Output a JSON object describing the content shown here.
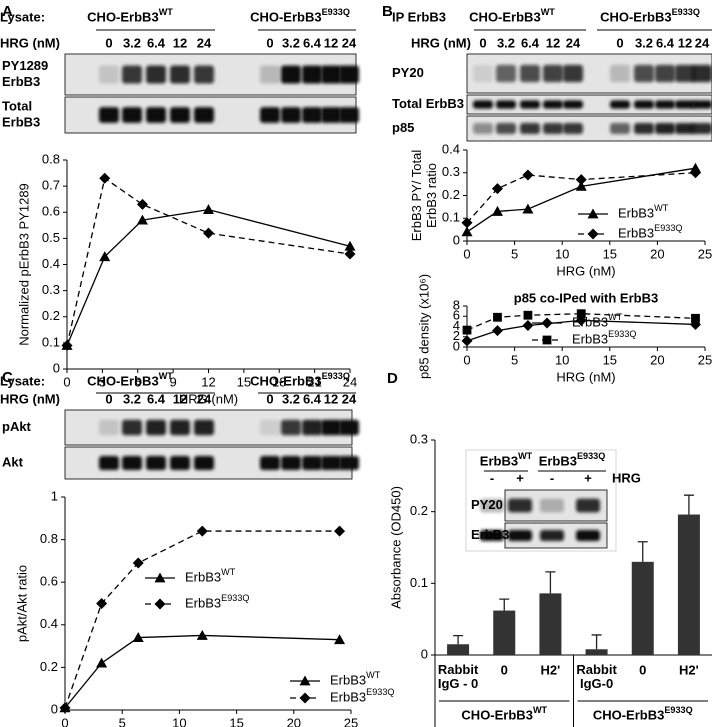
{
  "chart_data": [
    {
      "type": "line",
      "xlabel": "HRG (nM)",
      "ylabel": "Normalized pErbB3 PY1289",
      "x": [
        0,
        3.2,
        6.4,
        12,
        24
      ],
      "xlim": [
        0,
        24
      ],
      "xticks": [
        0,
        3,
        6,
        9,
        12,
        15,
        18,
        21,
        24
      ],
      "ylim": [
        0,
        0.8
      ],
      "yticks": [
        0,
        0.1,
        0.2,
        0.3,
        0.4,
        0.5,
        0.6,
        0.7,
        0.8
      ],
      "legend": "lower center",
      "series": [
        {
          "name": "ErbB3WT",
          "color": "#000000",
          "marker": "triangle",
          "line_style": "solid",
          "values": [
            0.09,
            0.43,
            0.57,
            0.61,
            0.47
          ]
        },
        {
          "name": "ErbB3E933Q",
          "color": "#000000",
          "marker": "diamond",
          "line_style": "dashed",
          "values": [
            0.09,
            0.73,
            0.63,
            0.52,
            0.44
          ]
        }
      ]
    },
    {
      "type": "line",
      "xlabel": "HRG (nM)",
      "ylabel": [
        "ErbB3 PY/ Total",
        "ErbB3 ratio"
      ],
      "x": [
        0,
        3.2,
        6.4,
        12,
        24
      ],
      "xlim": [
        0,
        25
      ],
      "xticks": [
        0,
        5,
        10,
        15,
        20,
        25
      ],
      "ylim": [
        0,
        0.4
      ],
      "yticks": [
        0,
        0.1,
        0.2,
        0.3,
        0.4
      ],
      "legend": "lower right",
      "series": [
        {
          "name": "ErbB3WT",
          "color": "#000000",
          "marker": "triangle",
          "line_style": "solid",
          "values": [
            0.04,
            0.13,
            0.14,
            0.24,
            0.32
          ]
        },
        {
          "name": "ErbB3E933Q",
          "color": "#000000",
          "marker": "diamond",
          "line_style": "dashed",
          "values": [
            0.08,
            0.23,
            0.29,
            0.27,
            0.3
          ]
        }
      ]
    },
    {
      "type": "line",
      "title": "p85 co-IPed with ErbB3",
      "xlabel": "HRG (nM)",
      "ylabel": "p85  density (x10⁶)",
      "x": [
        0,
        3.2,
        6.4,
        12,
        24
      ],
      "xlim": [
        0,
        25
      ],
      "xticks": [
        0,
        5,
        10,
        15,
        20,
        25
      ],
      "ylim": [
        0,
        8
      ],
      "yticks": [
        0,
        2,
        4,
        6,
        8
      ],
      "legend": "lower center",
      "series": [
        {
          "name": "ErbB3WT",
          "color": "#000000",
          "marker": "diamond",
          "line_style": "solid",
          "values": [
            1.2,
            3.2,
            4.2,
            5.2,
            4.4
          ]
        },
        {
          "name": "ErbB3E933Q",
          "color": "#000000",
          "marker": "square",
          "line_style": "dashed",
          "values": [
            3.3,
            5.8,
            6.2,
            6.5,
            5.6
          ]
        }
      ]
    },
    {
      "type": "line",
      "xlabel": "HRG (nM)",
      "ylabel": "pAkt/Akt ratio",
      "x": [
        0,
        3.2,
        6.4,
        12,
        24
      ],
      "xlim": [
        0,
        25
      ],
      "xticks": [
        0,
        5,
        10,
        15,
        20,
        25
      ],
      "ylim": [
        0,
        1
      ],
      "yticks": [
        0,
        0.2,
        0.4,
        0.6,
        0.8,
        1
      ],
      "legend": "lower right",
      "series": [
        {
          "name": "ErbB3WT",
          "color": "#000000",
          "marker": "triangle",
          "line_style": "solid",
          "values": [
            0.01,
            0.22,
            0.34,
            0.35,
            0.33
          ]
        },
        {
          "name": "ErbB3E933Q",
          "color": "#000000",
          "marker": "diamond",
          "line_style": "dashed",
          "values": [
            0.01,
            0.5,
            0.69,
            0.84,
            0.84
          ]
        }
      ]
    },
    {
      "type": "bar",
      "ylabel": "Absorbance (OD450)",
      "categories": [
        "Rabbit IgG - 0",
        "0",
        "H2'",
        "Rabbit IgG-0",
        "0",
        "H2'"
      ],
      "groups": [
        "CHO-ErbB3WT",
        "CHO-ErbB3E933Q"
      ],
      "values": [
        0.015,
        0.062,
        0.086,
        0.008,
        0.13,
        0.196
      ],
      "errors": [
        0.012,
        0.016,
        0.03,
        0.02,
        0.028,
        0.027
      ],
      "color": "#333333",
      "ylim": [
        0,
        0.3
      ],
      "yticks": [
        0,
        0.1,
        0.2,
        0.3
      ]
    }
  ],
  "blots": [
    {
      "letter": "A",
      "prefix": "Lysate:",
      "groups": [
        "CHO-ErbB3WT",
        "CHO-ErbB3E933Q"
      ],
      "dose_label": "HRG (nM)",
      "doses": [
        "0",
        "3.2",
        "6.4",
        "12",
        "24"
      ],
      "rows": [
        [
          "PY1289",
          "ErbB3"
        ],
        [
          "Total",
          "ErbB3"
        ]
      ]
    },
    {
      "letter": "B",
      "prefix": "IP ErbB3",
      "groups": [
        "CHO-ErbB3WT",
        "CHO-ErbB3E933Q"
      ],
      "dose_label": "HRG (nM)",
      "doses": [
        "0",
        "3.2",
        "6.4",
        "12",
        "24"
      ],
      "rows": [
        [
          "PY20"
        ],
        [
          "Total ErbB3"
        ],
        [
          "p85"
        ]
      ]
    },
    {
      "letter": "C",
      "prefix": "Lysate:",
      "groups": [
        "CHO-ErbB3WT",
        "CHO-ErbB3E933Q"
      ],
      "dose_label": "HRG (nM)",
      "doses": [
        "0",
        "3.2",
        "6.4",
        "12",
        "24"
      ],
      "rows": [
        [
          "pAkt"
        ],
        [
          "Akt"
        ]
      ]
    },
    {
      "letter": "D",
      "groups": [
        "ErbB3WT",
        "ErbB3E933Q"
      ],
      "dose_label": "HRG",
      "doses": [
        "-",
        "+"
      ],
      "rows": [
        [
          "PY20"
        ],
        [
          "ErbB3"
        ]
      ]
    }
  ]
}
